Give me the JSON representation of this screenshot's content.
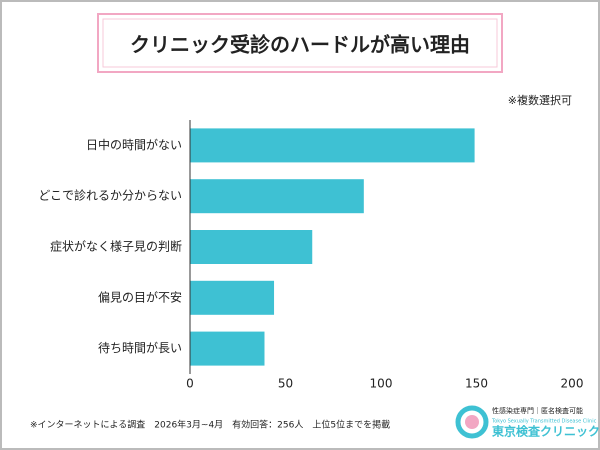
{
  "chart_data": {
    "type": "barh",
    "title": "クリニック受診のハードルが高い理由",
    "note": "※複数選択可",
    "categories": [
      "日中の時間がない",
      "どこで診れるか分からない",
      "症状がなく様子見の判断",
      "偏見の目が不安",
      "待ち時間が長い"
    ],
    "values": [
      149,
      91,
      64,
      44,
      39
    ],
    "color": "#3ec1d3",
    "xlim": [
      0,
      200
    ],
    "xticks": [
      0,
      50,
      100,
      150,
      200
    ],
    "grid": false,
    "footnote": "※インターネットによる調査　2026年3月~4月　有効回答：256人　上位5位までを掲載",
    "logo": {
      "tagline": "性感染症専門｜匿名検査可能",
      "english": "Tokyo Sexually Transmitted Disease Clinic",
      "name": "東京検査クリニック"
    }
  }
}
